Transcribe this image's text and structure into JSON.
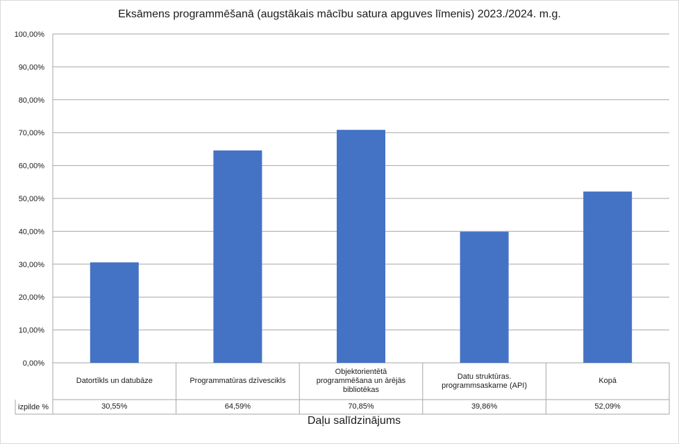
{
  "chart_data": {
    "type": "bar",
    "title": "Eksāmens programmēšanā (augstākais mācību satura apguves līmenis) 2023./2024. m.g.",
    "xlabel": "Daļu salīdzinājums",
    "ylabel": "",
    "ylim": [
      0,
      100
    ],
    "y_ticks": [
      "0,00%",
      "10,00%",
      "20,00%",
      "30,00%",
      "40,00%",
      "50,00%",
      "60,00%",
      "70,00%",
      "80,00%",
      "90,00%",
      "100,00%"
    ],
    "categories": [
      "Datortīkls un datubāze",
      "Programmatūras dzīvescikls",
      "Objektorientētā programmēšana un ārējās bibliotēkas",
      "Datu struktūras. programmsaskarne (API)",
      "Kopā"
    ],
    "series": [
      {
        "name": "izpilde %",
        "values": [
          30.55,
          64.59,
          70.85,
          39.86,
          52.09
        ],
        "labels": [
          "30,55%",
          "64,59%",
          "70,85%",
          "39,86%",
          "52,09%"
        ],
        "color": "#4472c4"
      }
    ],
    "grid": true,
    "legend": "data-table"
  }
}
